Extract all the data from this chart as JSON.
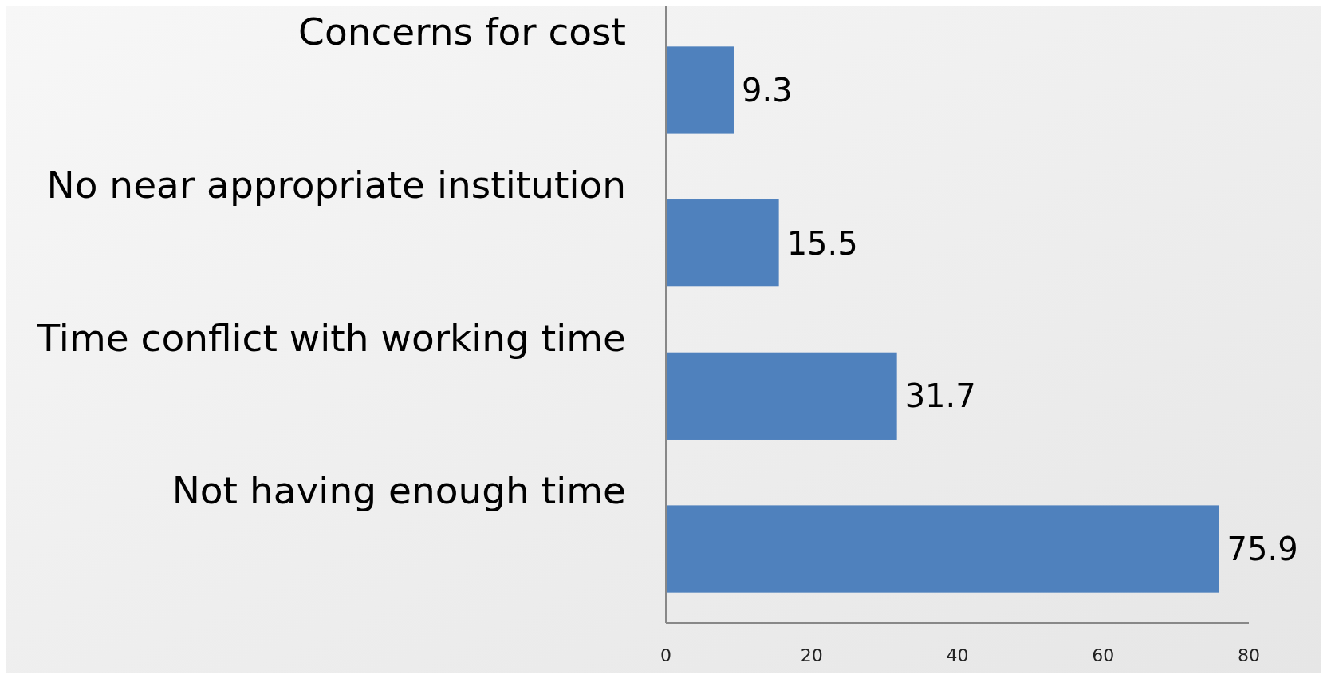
{
  "chart_data": {
    "type": "bar",
    "orientation": "horizontal",
    "categories": [
      "Concerns for cost",
      "No near appropriate institution",
      "Time conflict with working time",
      "Not having enough time"
    ],
    "values": [
      9.3,
      15.5,
      31.7,
      75.9
    ],
    "color": "#4f81bd",
    "xlim": [
      0,
      80
    ],
    "xticks": [
      0,
      20,
      40,
      60,
      80
    ],
    "data_labels": true
  }
}
